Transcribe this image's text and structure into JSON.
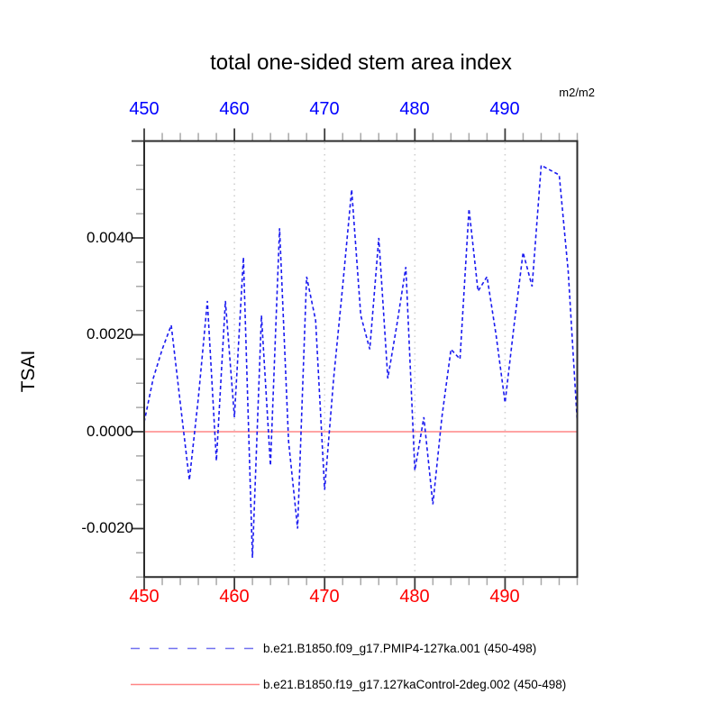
{
  "title": "total one-sided stem area index",
  "top_axis": {
    "unit": "m2/m2",
    "color": "#0000ff",
    "tick_labels": [
      "450",
      "460",
      "470",
      "480",
      "490"
    ]
  },
  "bottom_axis": {
    "color": "#ff0000",
    "tick_labels": [
      "450",
      "460",
      "470",
      "480",
      "490"
    ]
  },
  "left_axis": {
    "label": "TSAI",
    "tick_labels": [
      "0.0040",
      "0.0020",
      "0.0000",
      "-0.0020"
    ]
  },
  "legend": [
    {
      "label": "b.e21.B1850.f09_g17.PMIP4-127ka.001 (450-498)",
      "color": "#7070f0",
      "style": "dashed"
    },
    {
      "label": "b.e21.B1850.f19_g17.127kaControl-2deg.002 (450-498)",
      "color": "#ff8585",
      "style": "solid"
    }
  ],
  "colors": {
    "series_blue": "#1a1af0",
    "legend_blue": "#7070f0",
    "control_line": "#ff8585",
    "grid": "#d0d0d0",
    "frame": "#2b2b2b",
    "tick_major": "#3a3a3a",
    "tick_minor": "#a8a8a8"
  },
  "chart_data": {
    "type": "line",
    "title": "total one-sided stem area index",
    "xlabel": "",
    "ylabel": "TSAI",
    "unit": "m2/m2",
    "xlim": [
      450,
      498
    ],
    "ylim": [
      -0.003,
      0.006
    ],
    "x_major_ticks": [
      450,
      460,
      470,
      480,
      490
    ],
    "x_minor_step": 2,
    "y_major_ticks": [
      -0.002,
      0,
      0.002,
      0.004,
      0.006
    ],
    "y_minor_step": 0.0005,
    "grid_x": [
      460,
      470,
      480,
      490
    ],
    "grid_style": "dotted-vertical-only",
    "legend_position": "bottom",
    "series": [
      {
        "name": "b.e21.B1850.f09_g17.PMIP4-127ka.001 (450-498)",
        "style": "dashed",
        "x": [
          450,
          451,
          452,
          453,
          454,
          455,
          456,
          457,
          458,
          459,
          460,
          461,
          462,
          463,
          464,
          465,
          466,
          467,
          468,
          469,
          470,
          471,
          472,
          473,
          474,
          475,
          476,
          477,
          478,
          479,
          480,
          481,
          482,
          483,
          484,
          485,
          486,
          487,
          488,
          489,
          490,
          491,
          492,
          493,
          494,
          495,
          496,
          497,
          498
        ],
        "values": [
          0.0002,
          0.0011,
          0.0017,
          0.0022,
          0.0006,
          -0.001,
          0.0007,
          0.0027,
          -0.0006,
          0.0027,
          0.0003,
          0.0036,
          -0.0026,
          0.0024,
          -0.0007,
          0.0042,
          -0.0002,
          -0.002,
          0.0032,
          0.0023,
          -0.0012,
          0.0011,
          0.003,
          0.005,
          0.0024,
          0.0017,
          0.004,
          0.0011,
          0.0022,
          0.0034,
          -0.0008,
          0.0003,
          -0.0015,
          0.0003,
          0.0017,
          0.0015,
          0.0046,
          0.0029,
          0.0032,
          0.002,
          0.0006,
          0.0022,
          0.0037,
          0.003,
          0.0055,
          0.0054,
          0.0053,
          0.0033,
          0.0002
        ]
      },
      {
        "name": "b.e21.B1850.f19_g17.127kaControl-2deg.002 (450-498)",
        "style": "solid",
        "constant_value": 0.0
      }
    ]
  }
}
